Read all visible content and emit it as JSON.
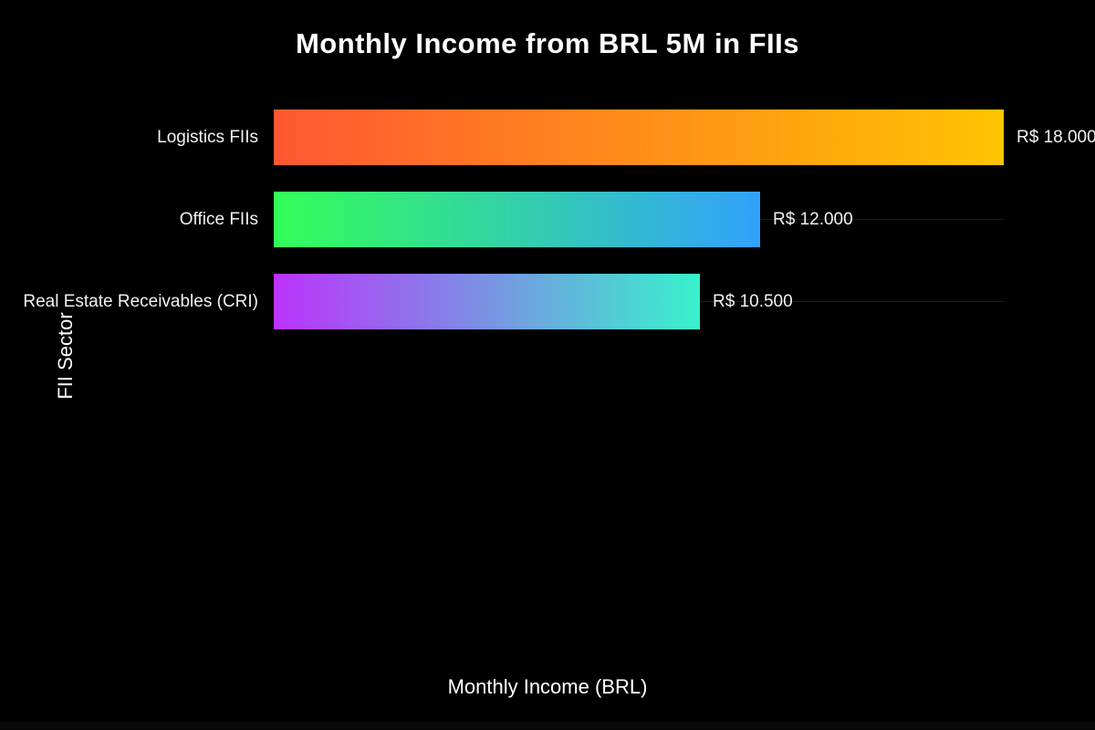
{
  "chart_data": {
    "type": "bar",
    "orientation": "horizontal",
    "title": "Monthly Income from BRL 5M in FIIs",
    "xlabel": "Monthly Income (BRL)",
    "ylabel": "FII Sector",
    "categories": [
      "Logistics FIIs",
      "Office FIIs",
      "Real Estate Receivables (CRI)"
    ],
    "values": [
      18000,
      12000,
      10500
    ],
    "value_labels": [
      "R$ 18.000",
      "R$ 12.000",
      "R$ 10.500"
    ],
    "xlim": [
      0,
      18000
    ],
    "grid": true,
    "legend": false,
    "bar_gradients": [
      {
        "from": "#ff5733",
        "to": "#ffc400"
      },
      {
        "from": "#33ff57",
        "to": "#33a1fd"
      },
      {
        "from": "#bb33fb",
        "to": "#38f2cc"
      }
    ],
    "colors": {
      "background": "#000000",
      "text": "#ffffff",
      "gridline": "#1e1e1e"
    }
  }
}
